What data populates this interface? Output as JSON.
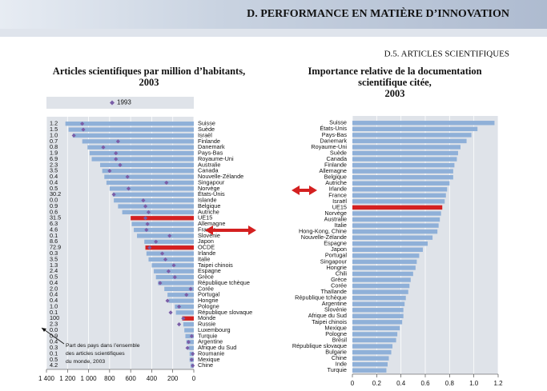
{
  "header": {
    "title": "D. PERFORMANCE EN MATIÈRE D’INNOVATION",
    "subtitle": "D.5. ARTICLES SCIENTIFIQUES"
  },
  "chart_data": [
    {
      "type": "bar",
      "orientation": "horizontal",
      "title": [
        "Articles scientifiques par million d’habitants,",
        "2003"
      ],
      "categories": [
        "Suisse",
        "Suède",
        "Israël",
        "Finlande",
        "Danemark",
        "Pays-Bas",
        "Royaume-Uni",
        "Australie",
        "Canada",
        "Nouvelle-Zélande",
        "Singapour",
        "Norvège",
        "États-Unis",
        "Islande",
        "Belgique",
        "Autriche",
        "UE15",
        "Allemagne",
        "France",
        "Slovénie",
        "Japon",
        "OCDE",
        "Irlande",
        "Italie",
        "Taipei chinois",
        "Espagne",
        "Grèce",
        "République tchèque",
        "Corée",
        "Portugal",
        "Hongrie",
        "Pologne",
        "République slovaque",
        "Monde",
        "Russie",
        "Luxembourg",
        "Turquie",
        "Argentine",
        "Afrique du Sud",
        "Roumanie",
        "Mexique",
        "Chine"
      ],
      "values": [
        1220,
        1190,
        1150,
        1060,
        1010,
        990,
        970,
        890,
        870,
        850,
        830,
        800,
        770,
        760,
        720,
        680,
        600,
        590,
        570,
        540,
        470,
        460,
        450,
        430,
        400,
        380,
        360,
        340,
        280,
        250,
        240,
        180,
        170,
        110,
        100,
        90,
        80,
        70,
        50,
        40,
        40,
        30
      ],
      "color": "#8fb0d8",
      "highlight": [
        "UE15",
        "OCDE",
        "Monde"
      ],
      "highlight_color": "#d42020",
      "markers": {
        "name": "1993",
        "color": "#7b5ea7",
        "values": [
          1060,
          1050,
          1140,
          720,
          860,
          740,
          740,
          700,
          800,
          630,
          260,
          620,
          760,
          480,
          460,
          430,
          460,
          440,
          450,
          230,
          360,
          420,
          300,
          270,
          190,
          240,
          180,
          320,
          30,
          70,
          250,
          140,
          220,
          100,
          140,
          null,
          20,
          50,
          60,
          10,
          20,
          10
        ]
      },
      "shares": [
        1.2,
        1.5,
        {
          "value": 1,
          "label": "1.0"
        },
        0.7,
        0.8,
        1.9,
        6.9,
        2.3,
        3.5,
        0.4,
        0.4,
        0.5,
        30.2,
        {
          "value": 0,
          "label": "0.0"
        },
        0.9,
        0.6,
        31.5,
        6.3,
        4.6,
        0.1,
        8.6,
        72.9,
        0.3,
        3.5,
        1.3,
        2.4,
        0.5,
        0.4,
        {
          "value": 2,
          "label": "2.0"
        },
        0.4,
        0.4,
        {
          "value": 1,
          "label": "1.0"
        },
        0.1,
        100,
        2.3,
        {
          "value": 0,
          "label": "0.0"
        },
        0.9,
        0.4,
        0.3,
        0.1,
        0.5,
        4.2
      ],
      "annotation": [
        "Part des pays dans l’ensemble",
        "des articles scientifiques",
        "du monde, 2003"
      ],
      "xlim": [
        1400,
        0
      ],
      "xticks": [
        {
          "value": 1400,
          "label": "1 400"
        },
        {
          "value": 1200,
          "label": "1 200"
        },
        {
          "value": 1000,
          "label": "1 000"
        },
        800,
        600,
        400,
        200,
        0
      ],
      "grid": true
    },
    {
      "type": "bar",
      "orientation": "horizontal",
      "title": [
        "Importance relative de la documentation",
        "scientifique citée,",
        "2003"
      ],
      "categories": [
        "Suisse",
        "États-Unis",
        "Pays-Bas",
        "Danemark",
        "Royaume-Uni",
        "Suède",
        "Canada",
        "Finlande",
        "Allemagne",
        "Belgique",
        "Autriche",
        "Irlande",
        "France",
        "Israël",
        "UE15",
        "Norvège",
        "Australie",
        "Italie",
        "Hong-Kong, Chine",
        "Nouvelle-Zélande",
        "Espagne",
        "Japon",
        "Portugal",
        "Singapour",
        "Hongrie",
        "Chili",
        "Grèce",
        "Corée",
        "Thaïlande",
        "République tchèque",
        "Argentine",
        "Slovénie",
        "Afrique du Sud",
        "Taipei chinois",
        "Mexique",
        "Pologne",
        "Brésil",
        "République slovaque",
        "Bulgarie",
        "Chine",
        "Inde",
        "Turquie"
      ],
      "values": [
        1.17,
        1.03,
        0.98,
        0.94,
        0.89,
        0.87,
        0.86,
        0.84,
        0.83,
        0.83,
        0.8,
        0.78,
        0.77,
        0.76,
        0.74,
        0.73,
        0.72,
        0.71,
        0.7,
        0.66,
        0.62,
        0.58,
        0.55,
        0.53,
        0.52,
        0.5,
        0.48,
        0.47,
        0.46,
        0.44,
        0.43,
        0.42,
        0.42,
        0.41,
        0.39,
        0.37,
        0.36,
        0.33,
        0.32,
        0.3,
        0.29,
        0.28
      ],
      "color": "#8fb0d8",
      "highlight": [
        "UE15"
      ],
      "highlight_color": "#d42020",
      "xlim": [
        0,
        1.2
      ],
      "xticks": [
        0,
        0.2,
        0.4,
        0.6,
        0.8,
        {
          "value": 1,
          "label": "1.0"
        },
        1.2
      ],
      "grid": true
    }
  ]
}
